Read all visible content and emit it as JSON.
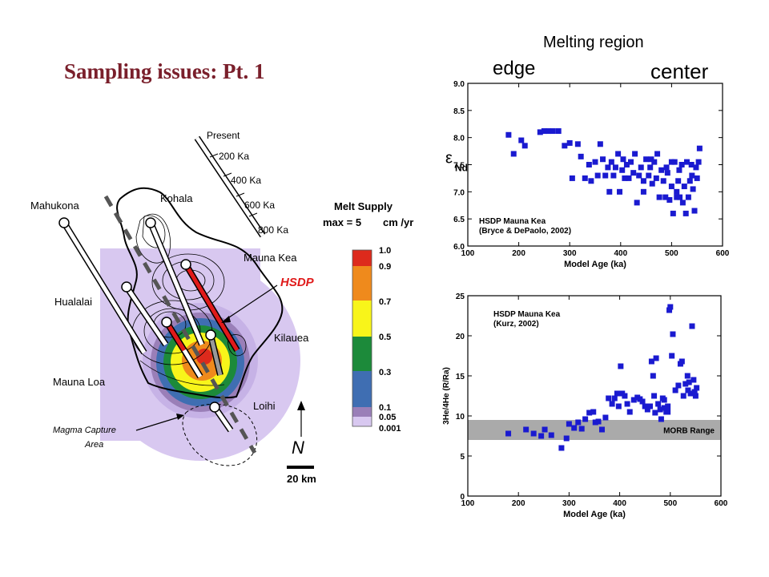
{
  "slide": {
    "title": "Sampling issues: Pt. 1",
    "melting_region_title": "Melting region",
    "edge_label": "edge",
    "center_label": "center"
  },
  "map": {
    "labels": {
      "present": "Present",
      "ages": [
        "200 Ka",
        "400 Ka",
        "600 Ka",
        "800 Ka"
      ],
      "kohala": "Kohala",
      "mahukona": "Mahukona",
      "mauna_kea": "Mauna Kea",
      "hsdp": "HSDP",
      "hualalai": "Hualalai",
      "kilauea": "Kilauea",
      "mauna_loa": "Mauna Loa",
      "loihi": "Loihi",
      "magma_capture_1": "Magma Capture",
      "magma_capture_2": "Area",
      "north": "N",
      "scale": "20 km"
    },
    "melt_supply": {
      "title": "Melt Supply",
      "max_prefix": "max = 5",
      "max_unit": "cm /yr",
      "ticks": [
        "1.0",
        "0.9",
        "0.7",
        "0.5",
        "0.3",
        "0.1",
        "0.05",
        "0.001"
      ],
      "colors": [
        "#dd2a1c",
        "#ef8a1c",
        "#f8f51a",
        "#1c8a3a",
        "#3f6eb2",
        "#9a7fb8",
        "#d8c8f0"
      ]
    }
  },
  "chart_data": [
    {
      "type": "scatter",
      "title": "",
      "xlabel": "Model Age (ka)",
      "ylabel_symbol": "ε",
      "ylabel_sub": "Nd",
      "xlim": [
        100,
        600
      ],
      "ylim": [
        6.0,
        9.0
      ],
      "xticks": [
        "100",
        "200",
        "300",
        "400",
        "500",
        "600"
      ],
      "yticks": [
        "6.0",
        "6.5",
        "7.0",
        "7.5",
        "8.0",
        "8.5",
        "9.0"
      ],
      "annotation": [
        "HSDP Mauna Kea",
        "(Bryce & DePaolo, 2002)"
      ],
      "marker_color": "#1a1ad0",
      "points": [
        [
          180,
          8.05
        ],
        [
          190,
          7.7
        ],
        [
          205,
          7.95
        ],
        [
          212,
          7.85
        ],
        [
          242,
          8.1
        ],
        [
          250,
          8.12
        ],
        [
          258,
          8.12
        ],
        [
          267,
          8.12
        ],
        [
          278,
          8.12
        ],
        [
          290,
          7.85
        ],
        [
          300,
          7.9
        ],
        [
          305,
          7.25
        ],
        [
          316,
          7.88
        ],
        [
          322,
          7.65
        ],
        [
          330,
          7.25
        ],
        [
          338,
          7.5
        ],
        [
          342,
          7.2
        ],
        [
          350,
          7.55
        ],
        [
          355,
          7.3
        ],
        [
          360,
          7.88
        ],
        [
          365,
          7.6
        ],
        [
          370,
          7.3
        ],
        [
          375,
          7.45
        ],
        [
          378,
          7.0
        ],
        [
          382,
          7.55
        ],
        [
          386,
          7.3
        ],
        [
          390,
          7.45
        ],
        [
          395,
          7.7
        ],
        [
          398,
          7.0
        ],
        [
          403,
          7.4
        ],
        [
          405,
          7.6
        ],
        [
          408,
          7.25
        ],
        [
          412,
          7.5
        ],
        [
          416,
          7.25
        ],
        [
          420,
          7.55
        ],
        [
          425,
          7.35
        ],
        [
          428,
          7.7
        ],
        [
          432,
          6.8
        ],
        [
          436,
          7.3
        ],
        [
          440,
          7.45
        ],
        [
          445,
          7.2
        ],
        [
          450,
          7.6
        ],
        [
          455,
          7.3
        ],
        [
          458,
          7.45
        ],
        [
          462,
          7.15
        ],
        [
          466,
          7.55
        ],
        [
          470,
          7.25
        ],
        [
          472,
          7.7
        ],
        [
          476,
          6.9
        ],
        [
          480,
          7.4
        ],
        [
          484,
          7.2
        ],
        [
          488,
          6.9
        ],
        [
          492,
          7.35
        ],
        [
          496,
          6.85
        ],
        [
          500,
          7.1
        ],
        [
          503,
          6.6
        ],
        [
          506,
          7.55
        ],
        [
          510,
          6.9
        ],
        [
          513,
          7.2
        ],
        [
          516,
          6.9
        ],
        [
          520,
          7.5
        ],
        [
          522,
          6.8
        ],
        [
          525,
          7.1
        ],
        [
          528,
          6.6
        ],
        [
          530,
          7.55
        ],
        [
          533,
          6.9
        ],
        [
          536,
          7.2
        ],
        [
          539,
          7.5
        ],
        [
          542,
          7.05
        ],
        [
          545,
          6.65
        ],
        [
          548,
          7.45
        ],
        [
          550,
          7.25
        ],
        [
          553,
          7.55
        ],
        [
          555,
          7.8
        ],
        [
          500,
          7.55
        ],
        [
          515,
          7.4
        ],
        [
          540,
          7.3
        ],
        [
          510,
          7.0
        ],
        [
          490,
          7.45
        ],
        [
          460,
          7.6
        ],
        [
          445,
          7.0
        ]
      ]
    },
    {
      "type": "scatter",
      "title": "",
      "xlabel": "Model Age (ka)",
      "ylabel": "3He/4He (R/Ra)",
      "xlim": [
        100,
        600
      ],
      "ylim": [
        0,
        25
      ],
      "xticks": [
        "100",
        "200",
        "300",
        "400",
        "500",
        "600"
      ],
      "yticks": [
        "0",
        "5",
        "10",
        "15",
        "20",
        "25"
      ],
      "annotation": [
        "HSDP Mauna Kea",
        "(Kurz, 2002)"
      ],
      "band": {
        "ymin": 7.0,
        "ymax": 9.5,
        "label": "MORB Range"
      },
      "marker_color": "#1a1ad0",
      "points": [
        [
          180,
          7.8
        ],
        [
          215,
          8.3
        ],
        [
          230,
          7.8
        ],
        [
          245,
          7.5
        ],
        [
          252,
          8.3
        ],
        [
          265,
          7.6
        ],
        [
          285,
          6.0
        ],
        [
          295,
          7.2
        ],
        [
          300,
          9.0
        ],
        [
          310,
          8.5
        ],
        [
          318,
          9.2
        ],
        [
          325,
          8.4
        ],
        [
          332,
          9.6
        ],
        [
          340,
          10.4
        ],
        [
          348,
          10.5
        ],
        [
          352,
          9.2
        ],
        [
          358,
          9.3
        ],
        [
          365,
          8.3
        ],
        [
          372,
          9.8
        ],
        [
          378,
          12.2
        ],
        [
          385,
          11.5
        ],
        [
          390,
          12.2
        ],
        [
          395,
          12.8
        ],
        [
          398,
          11.2
        ],
        [
          402,
          16.2
        ],
        [
          405,
          12.8
        ],
        [
          410,
          12.5
        ],
        [
          415,
          11.5
        ],
        [
          420,
          10.5
        ],
        [
          428,
          12.0
        ],
        [
          435,
          12.3
        ],
        [
          440,
          12.1
        ],
        [
          445,
          11.8
        ],
        [
          450,
          11.2
        ],
        [
          455,
          10.8
        ],
        [
          460,
          11.2
        ],
        [
          463,
          16.8
        ],
        [
          466,
          15.0
        ],
        [
          468,
          12.5
        ],
        [
          472,
          17.2
        ],
        [
          476,
          11.5
        ],
        [
          480,
          10.8
        ],
        [
          482,
          9.6
        ],
        [
          485,
          12.2
        ],
        [
          488,
          11.0
        ],
        [
          492,
          10.5
        ],
        [
          495,
          11.2
        ],
        [
          498,
          23.2
        ],
        [
          500,
          23.6
        ],
        [
          503,
          17.5
        ],
        [
          505,
          20.2
        ],
        [
          510,
          13.2
        ],
        [
          516,
          13.8
        ],
        [
          520,
          16.5
        ],
        [
          523,
          16.8
        ],
        [
          526,
          12.5
        ],
        [
          530,
          14.0
        ],
        [
          534,
          15.0
        ],
        [
          537,
          14.2
        ],
        [
          540,
          12.8
        ],
        [
          543,
          21.2
        ],
        [
          546,
          14.5
        ],
        [
          548,
          13.0
        ],
        [
          550,
          12.5
        ],
        [
          552,
          13.5
        ],
        [
          535,
          13.2
        ],
        [
          495,
          10.5
        ],
        [
          470,
          10.4
        ],
        [
          488,
          12.0
        ]
      ]
    }
  ]
}
